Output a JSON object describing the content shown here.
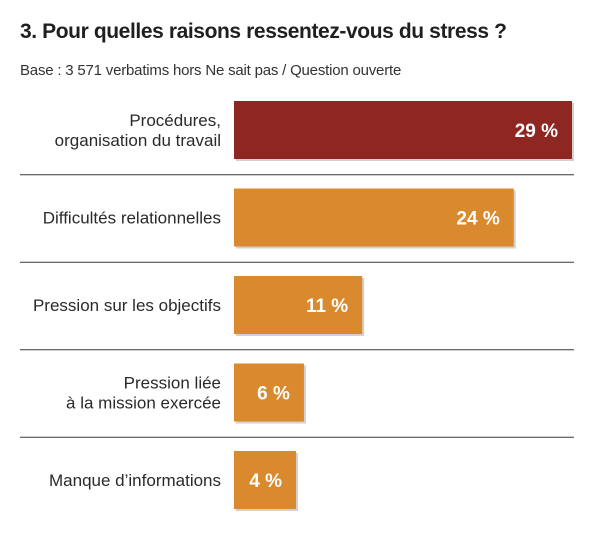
{
  "header": {
    "title": "3. Pour quelles raisons ressentez-vous du stress ?",
    "subtitle": "Base : 3 571 verbatims hors Ne sait pas / Question ouverte"
  },
  "chart_data": {
    "type": "bar",
    "orientation": "horizontal",
    "title": "3. Pour quelles raisons ressentez-vous du stress ?",
    "subtitle": "Base : 3 571 verbatims hors Ne sait pas / Question ouverte",
    "unit": "%",
    "categories": [
      [
        "Procédures,",
        "organisation du travail"
      ],
      [
        "Difficultés relationnelles"
      ],
      [
        "Pression sur les objectifs"
      ],
      [
        "Pression liée",
        "à la mission exercée"
      ],
      [
        "Manque d’informations"
      ]
    ],
    "values": [
      29,
      24,
      11,
      6,
      4
    ],
    "value_labels": [
      "29 %",
      "24 %",
      "11 %",
      "6 %",
      "4 %"
    ],
    "bar_colors": [
      "#8e2622",
      "#d98a2e",
      "#d98a2e",
      "#d98a2e",
      "#d98a2e"
    ],
    "xlim": [
      0,
      29
    ],
    "grid": false,
    "separators": true
  }
}
